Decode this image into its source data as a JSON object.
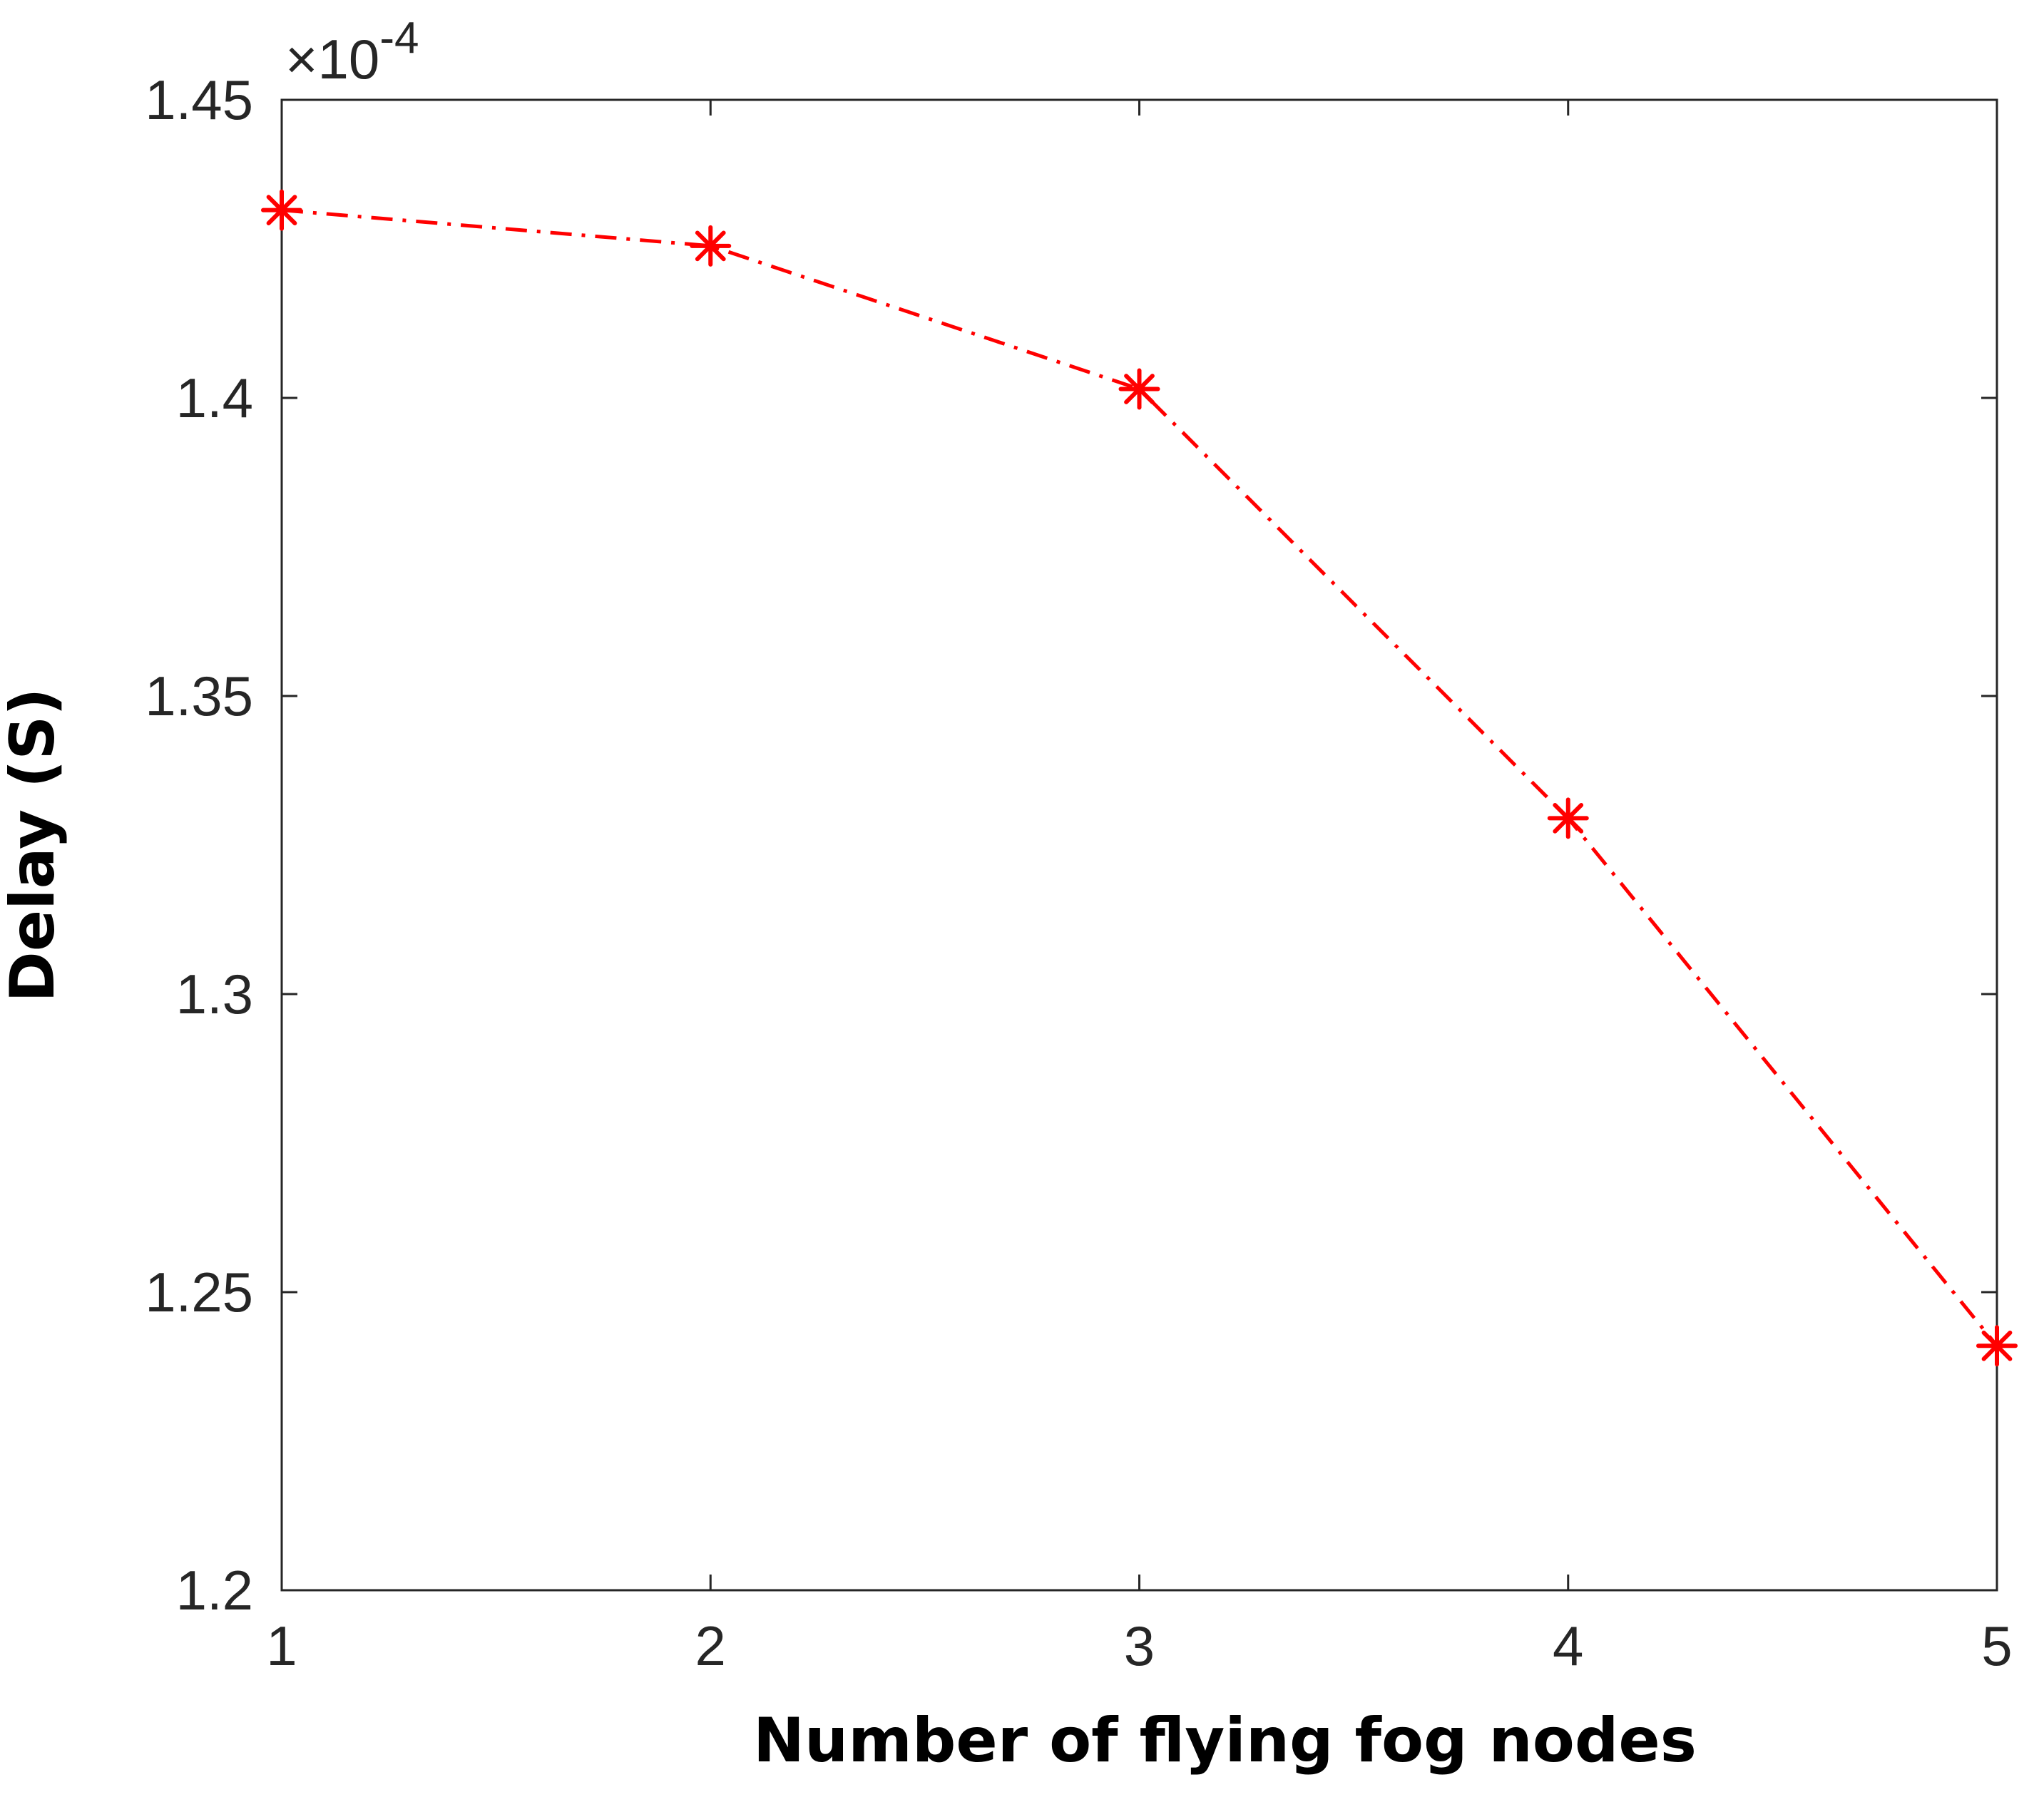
{
  "chart_data": {
    "type": "line",
    "title": "",
    "xlabel": "Number of flying fog nodes",
    "ylabel": "Delay (S)",
    "y_exponent": {
      "prefix": "×10",
      "power": "-4"
    },
    "x": [
      1,
      2,
      3,
      4,
      5
    ],
    "x_ticks": [
      1,
      2,
      3,
      4,
      5
    ],
    "x_tick_labels": [
      "1",
      "2",
      "3",
      "4",
      "5"
    ],
    "y_ticks": [
      1.2,
      1.25,
      1.3,
      1.35,
      1.4,
      1.45
    ],
    "y_tick_labels": [
      "1.2",
      "1.25",
      "1.3",
      "1.35",
      "1.4",
      "1.45"
    ],
    "xlim": [
      1,
      5
    ],
    "ylim": [
      1.2,
      1.45
    ],
    "grid": false,
    "series": [
      {
        "values": [
          1.4315,
          1.4255,
          1.4015,
          1.3295,
          1.241
        ],
        "color": "#ff0000",
        "line_style": "dash-dot",
        "marker": "asterisk"
      }
    ]
  }
}
